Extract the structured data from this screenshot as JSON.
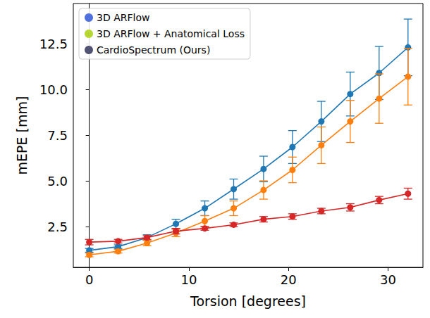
{
  "chart_data": {
    "type": "line",
    "x_label": "Torsion [degrees]",
    "y_label": "mEPE [mm]",
    "xlim": [
      -1.6,
      33.5
    ],
    "xticks": [
      0,
      10,
      20,
      30
    ],
    "ylim": [
      0.27,
      14.7
    ],
    "yticks": [
      {
        "value": 2.5,
        "label": "2.5"
      },
      {
        "value": 5,
        "label": "5.0"
      },
      {
        "value": 7.5,
        "label": "7.5"
      },
      {
        "value": 10,
        "label": "10.0"
      },
      {
        "value": 12.5,
        "label": "12.5"
      }
    ],
    "grid": false,
    "legend": "upper left",
    "marker": "circle",
    "line_style": "solid",
    "x": [
      0,
      2.9,
      5.8,
      8.7,
      11.6,
      14.5,
      17.5,
      20.4,
      23.3,
      26.2,
      29.1,
      32.0
    ],
    "series": [
      {
        "name": "3D ARFlow",
        "color": "#1f77b4",
        "values": [
          1.2,
          1.4,
          1.9,
          2.65,
          3.5,
          4.55,
          5.65,
          6.85,
          8.25,
          9.75,
          10.9,
          12.3
        ],
        "errors": [
          0.1,
          0.1,
          0.15,
          0.25,
          0.4,
          0.55,
          0.7,
          0.9,
          1.1,
          1.2,
          1.45,
          1.55
        ]
      },
      {
        "name": "3D ARFlow + Anatomical Loss",
        "color": "#ff7f0e",
        "values": [
          0.95,
          1.15,
          1.6,
          2.15,
          2.8,
          3.5,
          4.5,
          5.6,
          6.95,
          8.25,
          9.5,
          10.7
        ],
        "errors": [
          0.1,
          0.1,
          0.15,
          0.2,
          0.3,
          0.4,
          0.5,
          0.7,
          1.0,
          1.15,
          1.35,
          1.55
        ]
      },
      {
        "name": "CardioSpectrum (Ours)",
        "color": "#d62728",
        "values": [
          1.65,
          1.7,
          1.9,
          2.25,
          2.4,
          2.6,
          2.9,
          3.05,
          3.35,
          3.55,
          3.95,
          4.3
        ],
        "errors": [
          0.15,
          0.1,
          0.1,
          0.15,
          0.1,
          0.1,
          0.15,
          0.15,
          0.15,
          0.2,
          0.2,
          0.3
        ]
      }
    ]
  }
}
